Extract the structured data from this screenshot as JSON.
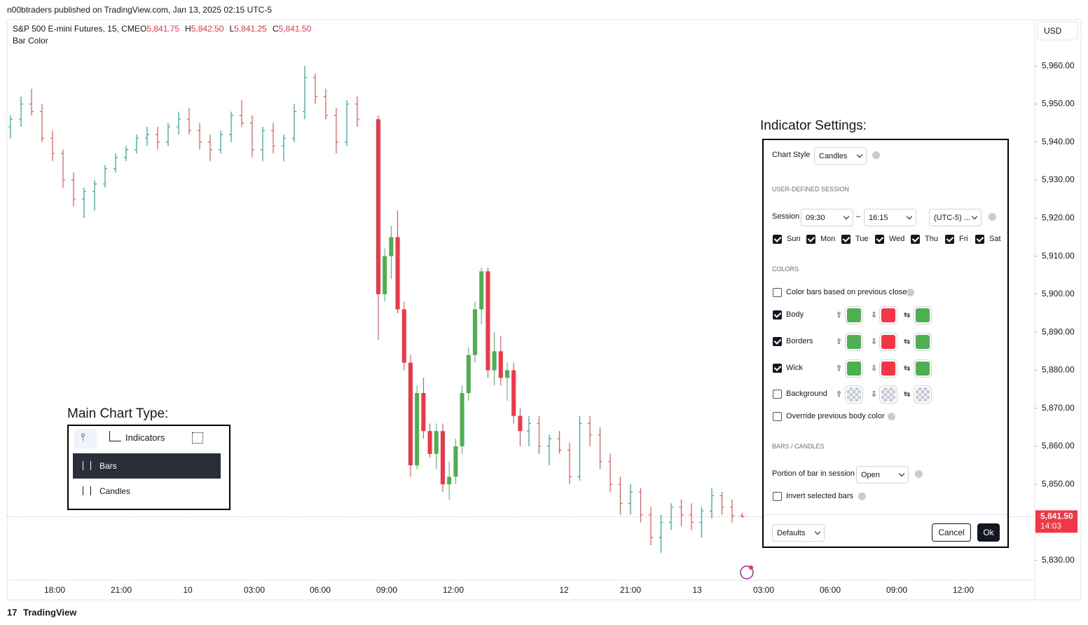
{
  "header": {
    "attribution": "n00btraders published on TradingView.com, Jan 13, 2025 02:15 UTC-5"
  },
  "footer": {
    "logo": "TradingView"
  },
  "chart": {
    "symbol": "S&P 500 E-mini Futures, 15, CME",
    "ohlc": [
      {
        "key": "O",
        "value": "5,841.75"
      },
      {
        "key": "H",
        "value": "5,842.50"
      },
      {
        "key": "L",
        "value": "5,841.25"
      },
      {
        "key": "C",
        "value": "5,841.50"
      }
    ],
    "indicator": "Bar Color",
    "currency": "USD",
    "ylim": [
      5824.8,
      5972.2
    ],
    "yticks": [
      {
        "value": 5960,
        "label": "5,960.00"
      },
      {
        "value": 5950,
        "label": "5,950.00"
      },
      {
        "value": 5940,
        "label": "5,940.00"
      },
      {
        "value": 5930,
        "label": "5,930.00"
      },
      {
        "value": 5920,
        "label": "5,920.00"
      },
      {
        "value": 5910,
        "label": "5,910.00"
      },
      {
        "value": 5900,
        "label": "5,900.00"
      },
      {
        "value": 5890,
        "label": "5,890.00"
      },
      {
        "value": 5880,
        "label": "5,880.00"
      },
      {
        "value": 5870,
        "label": "5,870.00"
      },
      {
        "value": 5860,
        "label": "5,860.00"
      },
      {
        "value": 5850,
        "label": "5,850.00"
      },
      {
        "value": 5830,
        "label": "5,830.00"
      }
    ],
    "xticks": [
      "18:00",
      "21:00",
      "10",
      "03:00",
      "06:00",
      "09:00",
      "12:00",
      "12",
      "21:00",
      "13",
      "03:00",
      "06:00",
      "09:00",
      "12:00"
    ],
    "last_price": {
      "value": 5841.5,
      "label": "5,841.50",
      "countdown": "14:03"
    },
    "bar_colors": {
      "up": "#26a69a",
      "down": "#ef5350"
    },
    "candle_colors": {
      "up": "#4caf50",
      "down": "#f23645"
    },
    "bars_before": [
      [
        5944,
        5947,
        5941,
        5946
      ],
      [
        5946,
        5952,
        5944,
        5950
      ],
      [
        5950,
        5954,
        5947,
        5948
      ],
      [
        5948,
        5950,
        5940,
        5941
      ],
      [
        5941,
        5943,
        5935,
        5937
      ],
      [
        5937,
        5938,
        5928,
        5930
      ],
      [
        5930,
        5932,
        5923,
        5925
      ],
      [
        5925,
        5928,
        5920,
        5927
      ],
      [
        5927,
        5930,
        5922,
        5929
      ],
      [
        5929,
        5934,
        5928,
        5933
      ],
      [
        5933,
        5937,
        5932,
        5936
      ],
      [
        5936,
        5939,
        5935,
        5938
      ],
      [
        5938,
        5942,
        5937,
        5941
      ],
      [
        5941,
        5944,
        5939,
        5942
      ],
      [
        5942,
        5944,
        5938,
        5940
      ],
      [
        5940,
        5945,
        5939,
        5944
      ],
      [
        5944,
        5948,
        5942,
        5946
      ],
      [
        5946,
        5949,
        5942,
        5943
      ],
      [
        5943,
        5945,
        5938,
        5940
      ],
      [
        5940,
        5942,
        5935,
        5938
      ],
      [
        5938,
        5943,
        5937,
        5942
      ],
      [
        5942,
        5948,
        5940,
        5947
      ],
      [
        5947,
        5951,
        5944,
        5945
      ],
      [
        5945,
        5947,
        5936,
        5938
      ],
      [
        5938,
        5944,
        5935,
        5943
      ],
      [
        5943,
        5945,
        5937,
        5939
      ],
      [
        5939,
        5942,
        5935,
        5941
      ],
      [
        5941,
        5950,
        5940,
        5948
      ],
      [
        5948,
        5960,
        5946,
        5957
      ],
      [
        5957,
        5958,
        5950,
        5952
      ],
      [
        5952,
        5954,
        5946,
        5947
      ],
      [
        5947,
        5949,
        5937,
        5940
      ],
      [
        5940,
        5951,
        5939,
        5950
      ],
      [
        5950,
        5952,
        5944,
        5946
      ]
    ],
    "candles": [
      [
        5946,
        5947,
        5888,
        5900
      ],
      [
        5900,
        5912,
        5898,
        5910
      ],
      [
        5910,
        5918,
        5904,
        5915
      ],
      [
        5915,
        5922,
        5895,
        5896
      ],
      [
        5896,
        5898,
        5880,
        5882
      ],
      [
        5882,
        5884,
        5852,
        5855
      ],
      [
        5855,
        5876,
        5854,
        5874
      ],
      [
        5874,
        5878,
        5862,
        5864
      ],
      [
        5864,
        5866,
        5857,
        5858
      ],
      [
        5858,
        5866,
        5854,
        5864
      ],
      [
        5864,
        5866,
        5848,
        5850
      ],
      [
        5850,
        5856,
        5846,
        5852
      ],
      [
        5852,
        5862,
        5850,
        5860
      ],
      [
        5860,
        5876,
        5858,
        5874
      ],
      [
        5874,
        5886,
        5872,
        5884
      ],
      [
        5884,
        5898,
        5882,
        5896
      ],
      [
        5896,
        5907,
        5892,
        5906
      ],
      [
        5906,
        5907,
        5878,
        5880
      ],
      [
        5880,
        5890,
        5876,
        5885
      ],
      [
        5885,
        5889,
        5876,
        5878
      ],
      [
        5878,
        5882,
        5872,
        5880
      ],
      [
        5880,
        5882,
        5866,
        5868
      ],
      [
        5868,
        5870,
        5860,
        5864
      ]
    ],
    "bars_after": [
      [
        5864,
        5868,
        5860,
        5866
      ],
      [
        5866,
        5868,
        5858,
        5860
      ],
      [
        5860,
        5863,
        5855,
        5862
      ],
      [
        5862,
        5864,
        5858,
        5859
      ],
      [
        5859,
        5861,
        5850,
        5852
      ],
      [
        5852,
        5868,
        5851,
        5866
      ],
      [
        5866,
        5868,
        5860,
        5863
      ],
      [
        5863,
        5865,
        5854,
        5856
      ],
      [
        5856,
        5858,
        5848,
        5850
      ],
      [
        5850,
        5852,
        5842,
        5845
      ],
      [
        5845,
        5850,
        5842,
        5848
      ],
      [
        5848,
        5849,
        5840,
        5842
      ],
      [
        5842,
        5844,
        5834,
        5836
      ],
      [
        5836,
        5842,
        5832,
        5840
      ],
      [
        5840,
        5845,
        5838,
        5844
      ],
      [
        5844,
        5846,
        5839,
        5842
      ],
      [
        5842,
        5845,
        5838,
        5840
      ],
      [
        5840,
        5844,
        5836,
        5843
      ],
      [
        5843,
        5849,
        5841,
        5847
      ],
      [
        5847,
        5848,
        5842,
        5844
      ],
      [
        5844,
        5846,
        5840,
        5841.75
      ],
      [
        5841.75,
        5842.5,
        5841.25,
        5841.5
      ]
    ]
  },
  "main_chart_type": {
    "title": "Main Chart Type:",
    "toolbar": "Indicators",
    "options": [
      "Bars",
      "Candles"
    ]
  },
  "settings": {
    "title": "Indicator Settings:",
    "chart_style": {
      "label": "Chart Style",
      "value": "Candles"
    },
    "session_heading": "USER-DEFINED SESSION",
    "session": {
      "label": "Session",
      "start": "09:30",
      "dash": "–",
      "end": "16:15",
      "timezone": "(UTC-5) ..."
    },
    "days": [
      {
        "name": "Sun",
        "checked": true
      },
      {
        "name": "Mon",
        "checked": true
      },
      {
        "name": "Tue",
        "checked": true
      },
      {
        "name": "Wed",
        "checked": true
      },
      {
        "name": "Thu",
        "checked": true
      },
      {
        "name": "Fri",
        "checked": true
      },
      {
        "name": "Sat",
        "checked": true
      }
    ],
    "colors_heading": "COLORS",
    "color_prev_close": {
      "label": "Color bars based on previous close",
      "checked": false
    },
    "arrows": [
      "⇧",
      "⇩",
      "⇆"
    ],
    "color_rows": [
      {
        "label": "Body",
        "checked": true,
        "colors": [
          "#4caf50",
          "#f23645",
          "#4caf50"
        ]
      },
      {
        "label": "Borders",
        "checked": true,
        "colors": [
          "#4caf50",
          "#f23645",
          "#4caf50"
        ]
      },
      {
        "label": "Wick",
        "checked": true,
        "colors": [
          "#4caf50",
          "#f23645",
          "#4caf50"
        ]
      },
      {
        "label": "Background",
        "checked": false,
        "colors": [
          "transparent",
          "transparent",
          "transparent"
        ]
      }
    ],
    "override": {
      "label": "Override previous body color",
      "checked": false
    },
    "bars_heading": "BARS / CANDLES",
    "portion": {
      "label": "Portion of bar in session",
      "value": "Open"
    },
    "invert": {
      "label": "Invert selected bars",
      "checked": false
    },
    "buttons": {
      "defaults": "Defaults",
      "cancel": "Cancel",
      "ok": "Ok"
    }
  }
}
